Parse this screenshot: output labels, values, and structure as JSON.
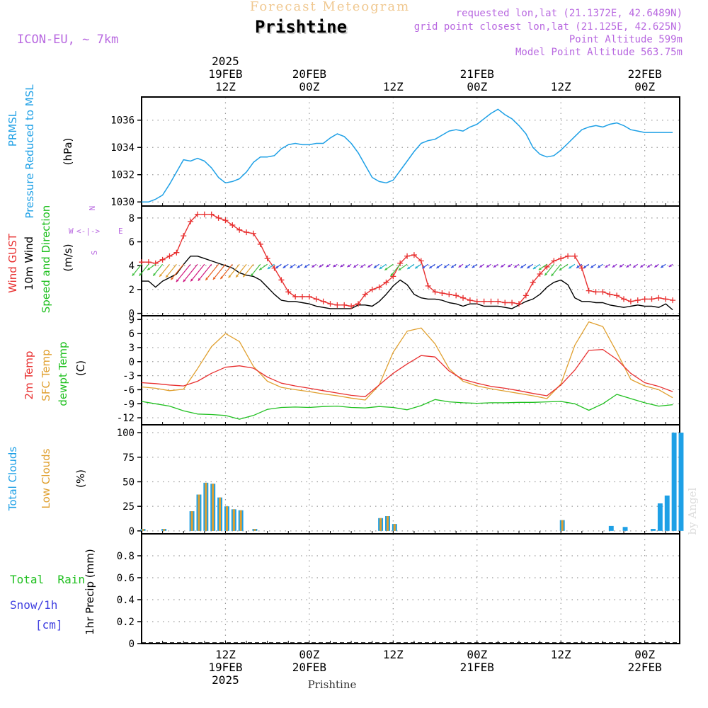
{
  "header": {
    "title": "Prishtine",
    "subtitle": "Forecast Meteogram",
    "model": "ICON-EU, ~ 7km",
    "requested": "requested lon,lat (21.1372E, 42.6489N)",
    "grid_point": "grid point closest lon,lat (21.125E, 42.625N)",
    "point_altitude": "Point Altitude 599m",
    "model_altitude": "Model Point Altitude 563.75m",
    "footer_name": "Prishtine",
    "watermark": "by Angel"
  },
  "time_axis": {
    "top_labels": [
      {
        "hour": 12,
        "lines": [
          "2025",
          "19FEB",
          "12Z"
        ]
      },
      {
        "hour": 24,
        "lines": [
          "20FEB",
          "00Z"
        ]
      },
      {
        "hour": 36,
        "lines": [
          "12Z"
        ]
      },
      {
        "hour": 48,
        "lines": [
          "21FEB",
          "00Z"
        ]
      },
      {
        "hour": 60,
        "lines": [
          "12Z"
        ]
      },
      {
        "hour": 72,
        "lines": [
          "22FEB",
          "00Z"
        ]
      }
    ],
    "bottom_labels": [
      {
        "hour": 12,
        "lines": [
          "12Z",
          "19FEB",
          "2025"
        ]
      },
      {
        "hour": 24,
        "lines": [
          "00Z",
          "20FEB"
        ]
      },
      {
        "hour": 36,
        "lines": [
          "12Z"
        ]
      },
      {
        "hour": 48,
        "lines": [
          "00Z",
          "21FEB"
        ]
      },
      {
        "hour": 60,
        "lines": [
          "12Z"
        ]
      },
      {
        "hour": 72,
        "lines": [
          "00Z",
          "22FEB"
        ]
      }
    ],
    "range_hours": [
      0,
      77
    ]
  },
  "colors": {
    "pressure": "#1ea0e6",
    "gust": "#e83030",
    "wind10m": "#000000",
    "temp2m": "#e83030",
    "sfc_temp": "#e0a030",
    "dewpoint": "#20c020",
    "total_clouds": "#1ea0e6",
    "low_clouds": "#e0a030",
    "rain": "#20c020",
    "snow": "#4040e0",
    "header_purple": "#b868e0",
    "header_orange": "#f0c890"
  },
  "panels": {
    "pressure": {
      "labels": [
        {
          "text": "PRMSL",
          "color": "#1ea0e6"
        },
        {
          "text": "Pressure Reduced to MSL",
          "color": "#1ea0e6"
        },
        {
          "text": "(hPa)",
          "color": "#000000"
        }
      ]
    },
    "wind": {
      "labels": [
        {
          "text": "Wind GUST",
          "color": "#e83030"
        },
        {
          "text": "10m Wind",
          "color": "#000000"
        },
        {
          "text": "Speed and Direction",
          "color": "#20c020"
        },
        {
          "text": "(m/s)",
          "color": "#000000"
        }
      ],
      "compass": {
        "north": "N",
        "south": "S",
        "west": "W",
        "east": "E"
      }
    },
    "temperature": {
      "labels": [
        {
          "text": "2m Temp",
          "color": "#e83030"
        },
        {
          "text": "SFC Temp",
          "color": "#e0a030"
        },
        {
          "text": "dewpt Temp",
          "color": "#20c020"
        },
        {
          "text": "(C)",
          "color": "#000000"
        }
      ]
    },
    "clouds": {
      "labels": [
        {
          "text": "Total Clouds",
          "color": "#1ea0e6"
        },
        {
          "text": "Low Clouds",
          "color": "#e0a030"
        },
        {
          "text": "(%)",
          "color": "#000000"
        }
      ]
    },
    "precip": {
      "labels": [
        {
          "text": "Total  Rain",
          "color": "#20c020"
        },
        {
          "text": "Snow/1h",
          "color": "#4040e0"
        },
        {
          "text": "[cm]",
          "color": "#4040e0"
        },
        {
          "text": "1hr Precip (mm)",
          "color": "#000000"
        }
      ]
    }
  },
  "chart_data": [
    {
      "type": "line",
      "id": "pressure",
      "title": "PRMSL Pressure Reduced to MSL",
      "ylabel": "(hPa)",
      "ylim": [
        1029.7,
        1037.7
      ],
      "yticks": [
        1030,
        1032,
        1034,
        1036
      ],
      "series": [
        {
          "name": "PRMSL",
          "x": [
            0,
            1,
            2,
            3,
            4,
            5,
            6,
            7,
            8,
            9,
            10,
            11,
            12,
            13,
            14,
            15,
            16,
            17,
            18,
            19,
            20,
            21,
            22,
            23,
            24,
            25,
            26,
            27,
            28,
            29,
            30,
            31,
            32,
            33,
            34,
            35,
            36,
            37,
            38,
            39,
            40,
            41,
            42,
            43,
            44,
            45,
            46,
            47,
            48,
            49,
            50,
            51,
            52,
            53,
            54,
            55,
            56,
            57,
            58,
            59,
            60,
            61,
            62,
            63,
            64,
            65,
            66,
            67,
            68,
            69,
            70,
            71,
            72,
            73,
            74,
            75,
            76
          ],
          "y": [
            1030.0,
            1030.0,
            1030.2,
            1030.5,
            1031.3,
            1032.2,
            1033.1,
            1033.0,
            1033.2,
            1033.0,
            1032.5,
            1031.8,
            1031.4,
            1031.5,
            1031.7,
            1032.2,
            1032.9,
            1033.3,
            1033.3,
            1033.4,
            1033.9,
            1034.2,
            1034.3,
            1034.2,
            1034.2,
            1034.3,
            1034.3,
            1034.7,
            1035.0,
            1034.8,
            1034.3,
            1033.6,
            1032.7,
            1031.8,
            1031.5,
            1031.4,
            1031.6,
            1032.3,
            1033.0,
            1033.7,
            1034.3,
            1034.5,
            1034.6,
            1034.9,
            1035.2,
            1035.3,
            1035.2,
            1035.5,
            1035.7,
            1036.1,
            1036.5,
            1036.8,
            1036.4,
            1036.1,
            1035.6,
            1035.0,
            1034.0,
            1033.5,
            1033.3,
            1033.4,
            1033.8,
            1034.3,
            1034.8,
            1035.3,
            1035.5,
            1035.6,
            1035.5,
            1035.7,
            1035.8,
            1035.6,
            1035.3,
            1035.2,
            1035.1,
            1035.1,
            1035.1,
            1035.1,
            1035.1
          ]
        }
      ]
    },
    {
      "type": "line",
      "id": "wind",
      "title": "Wind GUST / 10m Wind Speed and Direction",
      "ylabel": "(m/s)",
      "ylim": [
        -0.2,
        9.0
      ],
      "yticks": [
        0,
        2,
        4,
        6,
        8
      ],
      "series": [
        {
          "name": "Wind GUST",
          "x": [
            0,
            1,
            2,
            3,
            4,
            5,
            6,
            7,
            8,
            9,
            10,
            11,
            12,
            13,
            14,
            15,
            16,
            17,
            18,
            19,
            20,
            21,
            22,
            23,
            24,
            25,
            26,
            27,
            28,
            29,
            30,
            31,
            32,
            33,
            34,
            35,
            36,
            37,
            38,
            39,
            40,
            41,
            42,
            43,
            44,
            45,
            46,
            47,
            48,
            49,
            50,
            51,
            52,
            53,
            54,
            55,
            56,
            57,
            58,
            59,
            60,
            61,
            62,
            63,
            64,
            65,
            66,
            67,
            68,
            69,
            70,
            71,
            72,
            73,
            74,
            75,
            76
          ],
          "y": [
            4.3,
            4.3,
            4.2,
            4.5,
            4.8,
            5.1,
            6.5,
            7.7,
            8.3,
            8.3,
            8.3,
            8.0,
            7.8,
            7.4,
            7.0,
            6.8,
            6.7,
            5.8,
            4.6,
            3.8,
            2.8,
            1.8,
            1.4,
            1.4,
            1.4,
            1.2,
            1.0,
            0.8,
            0.7,
            0.7,
            0.6,
            0.8,
            1.6,
            2.0,
            2.2,
            2.6,
            3.1,
            4.2,
            4.8,
            4.9,
            4.4,
            2.3,
            1.8,
            1.7,
            1.6,
            1.5,
            1.3,
            1.1,
            1.0,
            1.0,
            1.0,
            1.0,
            0.9,
            0.9,
            0.8,
            1.5,
            2.6,
            3.3,
            3.9,
            4.4,
            4.6,
            4.8,
            4.8,
            3.8,
            1.9,
            1.8,
            1.8,
            1.6,
            1.5,
            1.2,
            1.0,
            1.1,
            1.2,
            1.2,
            1.3,
            1.2,
            1.1
          ]
        },
        {
          "name": "10m Wind",
          "x": [
            0,
            1,
            2,
            3,
            4,
            5,
            6,
            7,
            8,
            9,
            10,
            11,
            12,
            13,
            14,
            15,
            16,
            17,
            18,
            19,
            20,
            21,
            22,
            23,
            24,
            25,
            26,
            27,
            28,
            29,
            30,
            31,
            32,
            33,
            34,
            35,
            36,
            37,
            38,
            39,
            40,
            41,
            42,
            43,
            44,
            45,
            46,
            47,
            48,
            49,
            50,
            51,
            52,
            53,
            54,
            55,
            56,
            57,
            58,
            59,
            60,
            61,
            62,
            63,
            64,
            65,
            66,
            67,
            68,
            69,
            70,
            71,
            72,
            73,
            74,
            75,
            76
          ],
          "y": [
            2.7,
            2.7,
            2.2,
            2.7,
            3.0,
            3.3,
            4.1,
            4.8,
            4.8,
            4.6,
            4.4,
            4.2,
            4.0,
            3.8,
            3.4,
            3.2,
            3.1,
            2.8,
            2.2,
            1.6,
            1.1,
            1.0,
            1.0,
            0.9,
            0.8,
            0.6,
            0.5,
            0.4,
            0.4,
            0.4,
            0.4,
            0.7,
            0.7,
            0.6,
            1.0,
            1.6,
            2.3,
            2.8,
            2.4,
            1.6,
            1.3,
            1.2,
            1.2,
            1.1,
            0.9,
            0.8,
            0.6,
            0.8,
            0.8,
            0.6,
            0.6,
            0.6,
            0.5,
            0.4,
            0.7,
            1.0,
            1.2,
            1.6,
            2.2,
            2.6,
            2.8,
            2.4,
            1.3,
            1.0,
            1.0,
            0.9,
            0.9,
            0.7,
            0.6,
            0.5,
            0.6,
            0.7,
            0.6,
            0.6,
            0.5,
            0.8,
            0.3
          ]
        }
      ]
    },
    {
      "type": "line",
      "id": "temperature",
      "title": "2m Temp / SFC Temp / dewpt Temp",
      "ylabel": "(C)",
      "ylim": [
        -13.5,
        9.8
      ],
      "yticks": [
        -12,
        -9,
        -6,
        -3,
        0,
        3,
        6,
        9
      ],
      "series": [
        {
          "name": "2m Temp",
          "x": [
            0,
            2,
            4,
            6,
            8,
            10,
            12,
            14,
            16,
            18,
            20,
            22,
            24,
            26,
            28,
            30,
            32,
            34,
            36,
            38,
            40,
            42,
            44,
            46,
            48,
            50,
            52,
            54,
            56,
            58,
            60,
            62,
            64,
            66,
            68,
            70,
            72,
            74,
            76
          ],
          "y": [
            -4.5,
            -4.7,
            -5.0,
            -5.2,
            -4.2,
            -2.5,
            -1.2,
            -0.9,
            -1.4,
            -3.3,
            -4.6,
            -5.2,
            -5.7,
            -6.2,
            -6.7,
            -7.2,
            -7.5,
            -5.0,
            -2.5,
            -0.5,
            1.3,
            1.0,
            -2.0,
            -3.8,
            -4.6,
            -5.3,
            -5.7,
            -6.2,
            -6.8,
            -7.3,
            -5.0,
            -1.8,
            2.4,
            2.6,
            0.5,
            -2.5,
            -4.5,
            -5.3,
            -6.4
          ]
        },
        {
          "name": "SFC Temp",
          "x": [
            0,
            2,
            4,
            6,
            8,
            10,
            12,
            14,
            16,
            18,
            20,
            22,
            24,
            26,
            28,
            30,
            32,
            34,
            36,
            38,
            40,
            42,
            44,
            46,
            48,
            50,
            52,
            54,
            56,
            58,
            60,
            62,
            64,
            66,
            68,
            70,
            72,
            74,
            76
          ],
          "y": [
            -5.4,
            -5.7,
            -6.2,
            -5.9,
            -1.5,
            3.2,
            6.0,
            4.3,
            -1.0,
            -4.2,
            -5.5,
            -6.0,
            -6.4,
            -6.9,
            -7.3,
            -7.8,
            -8.2,
            -5.0,
            2.0,
            6.5,
            7.2,
            3.8,
            -1.5,
            -4.2,
            -5.2,
            -5.8,
            -6.3,
            -6.8,
            -7.3,
            -7.9,
            -4.8,
            3.5,
            8.5,
            7.5,
            2.0,
            -3.8,
            -5.2,
            -6.0,
            -7.7
          ]
        },
        {
          "name": "dewpt Temp",
          "x": [
            0,
            2,
            4,
            6,
            8,
            10,
            12,
            14,
            16,
            18,
            20,
            22,
            24,
            26,
            28,
            30,
            32,
            34,
            36,
            38,
            40,
            42,
            44,
            46,
            48,
            50,
            52,
            54,
            56,
            58,
            60,
            62,
            64,
            66,
            68,
            70,
            72,
            74,
            76
          ],
          "y": [
            -8.5,
            -9.0,
            -9.5,
            -10.5,
            -11.2,
            -11.3,
            -11.5,
            -12.3,
            -11.5,
            -10.2,
            -9.8,
            -9.7,
            -9.8,
            -9.6,
            -9.5,
            -9.8,
            -9.9,
            -9.6,
            -9.8,
            -10.3,
            -9.4,
            -8.1,
            -8.6,
            -8.8,
            -8.9,
            -8.8,
            -8.8,
            -8.7,
            -8.7,
            -8.6,
            -8.5,
            -9.0,
            -10.4,
            -9.0,
            -7.0,
            -7.9,
            -8.8,
            -9.5,
            -9.2
          ]
        }
      ]
    },
    {
      "type": "bar",
      "id": "clouds",
      "title": "Total Clouds / Low Clouds",
      "ylabel": "(%)",
      "ylim": [
        -3,
        108
      ],
      "yticks": [
        0,
        25,
        50,
        75,
        100
      ],
      "series": [
        {
          "name": "Total Clouds",
          "x": [
            0,
            3,
            7,
            8,
            9,
            10,
            11,
            12,
            13,
            14,
            16,
            34,
            35,
            36,
            60,
            67,
            69,
            73,
            74,
            75,
            76,
            77
          ],
          "y": [
            2,
            2,
            20,
            37,
            49,
            48,
            34,
            25,
            22,
            21,
            2,
            13,
            15,
            7,
            11,
            5,
            4,
            2,
            28,
            36,
            100,
            100
          ]
        },
        {
          "name": "Low Clouds",
          "x": [
            0,
            3,
            7,
            8,
            9,
            10,
            11,
            12,
            13,
            14,
            16,
            34,
            35,
            36,
            60
          ],
          "y": [
            2,
            2,
            20,
            37,
            49,
            48,
            34,
            25,
            22,
            21,
            2,
            13,
            15,
            7,
            11
          ]
        }
      ]
    },
    {
      "type": "line",
      "id": "precip",
      "title": "1hr Precip (mm)",
      "ylabel": "1hr Precip (mm)",
      "ylim": [
        0,
        1.0
      ],
      "yticks": [
        "0",
        "0.2",
        "0.4",
        "0.6",
        "0.8"
      ],
      "series": [
        {
          "name": "Total Rain",
          "x": [
            0,
            77
          ],
          "y": [
            0,
            0
          ]
        }
      ]
    }
  ]
}
